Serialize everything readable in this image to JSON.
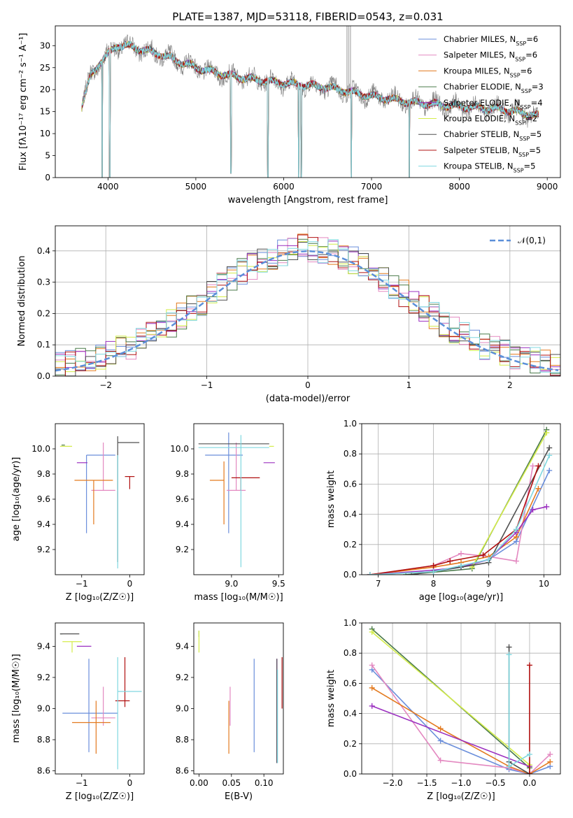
{
  "figure": {
    "title": "PLATE=1387, MJD=53118, FIBERID=0543, z=0.031"
  },
  "chart_data": [
    {
      "id": "spectrum",
      "type": "line",
      "xlabel": "wavelength [Angstrom, rest frame]",
      "ylabel": "Flux [fλ10⁻¹⁷ erg cm⁻² s⁻¹ A⁻¹]",
      "xlim": [
        3400,
        9150
      ],
      "ylim": [
        0,
        34.5
      ],
      "xticks": [
        4000,
        5000,
        6000,
        7000,
        8000,
        9000
      ],
      "yticks": [
        0,
        5,
        10,
        15,
        20,
        25,
        30
      ],
      "grid": false,
      "legend_position": "top-right",
      "data_color": "#808080",
      "series": [
        {
          "name": "Chabrier MILES, N_SSP=6",
          "color": "#6a8edb"
        },
        {
          "name": "Salpeter MILES, N_SSP=6",
          "color": "#e388c0"
        },
        {
          "name": "Kroupa MILES, N_SSP=6",
          "color": "#e37a1f"
        },
        {
          "name": "Chabrier ELODIE, N_SSP=3",
          "color": "#4a7a4a"
        },
        {
          "name": "Salpeter ELODIE, N_SSP=4",
          "color": "#9b30c0"
        },
        {
          "name": "Kroupa ELODIE, N_SSP=2",
          "color": "#d4ec4a"
        },
        {
          "name": "Chabrier STELIB, N_SSP=5",
          "color": "#505050"
        },
        {
          "name": "Salpeter STELIB, N_SSP=5",
          "color": "#b01010"
        },
        {
          "name": "Kroupa STELIB, N_SSP=5",
          "color": "#80d8e0"
        }
      ],
      "continuum": {
        "x": [
          3700,
          3800,
          3900,
          4000,
          4100,
          4200,
          4400,
          4600,
          4800,
          5000,
          5300,
          5600,
          6000,
          6500,
          7000,
          7500,
          8000,
          8500,
          8900
        ],
        "y": [
          16,
          23,
          26,
          28,
          30,
          30,
          29,
          28,
          26.5,
          25,
          23.5,
          22.5,
          21.5,
          20.5,
          18.5,
          17,
          16.2,
          15.5,
          14
        ]
      },
      "data_spikes": [
        {
          "x": 6720,
          "y_top": 34.5
        },
        {
          "x": 6740,
          "y_top": 34.5
        },
        {
          "x": 6760,
          "y_top": 34.5
        }
      ],
      "absorption_dips": [
        {
          "x": 3933,
          "y_min": 0
        },
        {
          "x": 4020,
          "y_min": 0
        },
        {
          "x": 5820,
          "y_min": 0
        },
        {
          "x": 6770,
          "y_min": 0
        },
        {
          "x": 7430,
          "y_min": 0
        },
        {
          "x": 5400,
          "y_min": 1
        },
        {
          "x": 6170,
          "y_min": 0
        },
        {
          "x": 6200,
          "y_min": 0
        }
      ]
    },
    {
      "id": "residual-hist",
      "type": "step",
      "xlabel": "(data-model)/error",
      "ylabel": "Normed distribution",
      "xlim": [
        -2.5,
        2.5
      ],
      "ylim": [
        0,
        0.48
      ],
      "xticks": [
        -2,
        -1,
        0,
        1,
        2
      ],
      "yticks": [
        0.0,
        0.1,
        0.2,
        0.3,
        0.4
      ],
      "grid": true,
      "legend_position": "top-right",
      "legend_label": "𝒩(0,1)",
      "normal_color": "#5b8fd9",
      "bin_width": 0.1
    },
    {
      "id": "age-vs-Z",
      "type": "errorbar",
      "xlabel": "Z [log₁₀(Z/Z☉)]",
      "ylabel": "age  [log₁₀(age/yr)]",
      "xlim": [
        -1.55,
        0.3
      ],
      "ylim": [
        9.0,
        10.2
      ],
      "xticks": [
        -1,
        0
      ],
      "yticks": [
        9.2,
        9.4,
        9.6,
        9.8,
        10.0
      ],
      "grid": false,
      "points": [
        {
          "color": "#6a8edb",
          "x": -0.9,
          "xerr": [
            0.0,
            0.6
          ],
          "y": 9.95,
          "yerr": [
            0.62,
            0.0
          ]
        },
        {
          "color": "#e388c0",
          "x": -0.55,
          "xerr": [
            0.25,
            0.25
          ],
          "y": 9.67,
          "yerr": [
            0.0,
            0.38
          ]
        },
        {
          "color": "#e37a1f",
          "x": -0.75,
          "xerr": [
            0.4,
            0.4
          ],
          "y": 9.75,
          "yerr": [
            0.35,
            0.0
          ]
        },
        {
          "color": "#4a7a4a",
          "x": -1.35,
          "xerr": [
            0.07,
            0.0
          ],
          "y": 10.03,
          "yerr": [
            0.0,
            0.0
          ]
        },
        {
          "color": "#9b30c0",
          "x": -1.0,
          "xerr": [
            0.1,
            0.12
          ],
          "y": 9.89,
          "yerr": [
            0.0,
            0.0
          ]
        },
        {
          "color": "#d4ec4a",
          "x": -1.2,
          "xerr": [
            0.25,
            0.0
          ],
          "y": 10.02,
          "yerr": [
            0.0,
            0.0
          ]
        },
        {
          "color": "#505050",
          "x": -0.25,
          "xerr": [
            0.0,
            0.45
          ],
          "y": 10.05,
          "yerr": [
            0.95,
            0.05
          ]
        },
        {
          "color": "#b01010",
          "x": 0.0,
          "xerr": [
            0.1,
            0.1
          ],
          "y": 9.78,
          "yerr": [
            0.1,
            0.0
          ]
        },
        {
          "color": "#80d8e0",
          "x": -0.25,
          "xerr": [
            0.0,
            0.0
          ],
          "y": 9.95,
          "yerr": [
            0.9,
            0.0
          ]
        }
      ]
    },
    {
      "id": "age-vs-mass",
      "type": "errorbar",
      "xlabel": "mass [log₁₀(M/M☉)]",
      "ylabel": "",
      "xlim": [
        8.6,
        9.55
      ],
      "ylim": [
        9.0,
        10.2
      ],
      "xticks": [
        9.0,
        9.5
      ],
      "yticks": [
        9.2,
        9.4,
        9.6,
        9.8,
        10.0
      ],
      "grid": false,
      "points": [
        {
          "color": "#6a8edb",
          "x": 8.97,
          "xerr": [
            0.25,
            0.15
          ],
          "y": 9.95,
          "yerr": [
            0.62,
            0.18
          ]
        },
        {
          "color": "#e388c0",
          "x": 9.05,
          "xerr": [
            0.1,
            0.1
          ],
          "y": 9.67,
          "yerr": [
            0.0,
            0.38
          ]
        },
        {
          "color": "#e37a1f",
          "x": 8.92,
          "xerr": [
            0.15,
            0.0
          ],
          "y": 9.75,
          "yerr": [
            0.35,
            0.15
          ]
        },
        {
          "color": "#4a7a4a",
          "x": 9.49,
          "xerr": [
            0.0,
            0.0
          ],
          "y": 10.0,
          "yerr": [
            0.0,
            0.0
          ]
        },
        {
          "color": "#9b30c0",
          "x": 9.4,
          "xerr": [
            0.06,
            0.06
          ],
          "y": 9.89,
          "yerr": [
            0.0,
            0.0
          ]
        },
        {
          "color": "#d4ec4a",
          "x": 9.45,
          "xerr": [
            0.05,
            0.0
          ],
          "y": 10.02,
          "yerr": [
            0.0,
            0.0
          ]
        },
        {
          "color": "#505050",
          "x": 9.05,
          "xerr": [
            0.4,
            0.35
          ],
          "y": 10.04,
          "yerr": [
            0.0,
            0.0
          ]
        },
        {
          "color": "#b01010",
          "x": 9.1,
          "xerr": [
            0.1,
            0.2
          ],
          "y": 9.77,
          "yerr": [
            0.1,
            0.0
          ]
        },
        {
          "color": "#80d8e0",
          "x": 9.1,
          "xerr": [
            0.45,
            0.3
          ],
          "y": 10.01,
          "yerr": [
            0.95,
            0.1
          ]
        }
      ]
    },
    {
      "id": "massweight-vs-age",
      "type": "line",
      "xlabel": "age  [log₁₀(age/yr)]",
      "ylabel": "mass weight",
      "xlim": [
        6.7,
        10.3
      ],
      "ylim": [
        0.0,
        1.0
      ],
      "xticks": [
        7,
        8,
        9,
        10
      ],
      "yticks": [
        0.0,
        0.2,
        0.4,
        0.6,
        0.8,
        1.0
      ],
      "grid": true,
      "series": [
        {
          "color": "#6a8edb",
          "x": [
            6.85,
            8.0,
            8.5,
            9.0,
            9.5,
            10.1
          ],
          "y": [
            0.0,
            0.02,
            0.05,
            0.1,
            0.22,
            0.69
          ]
        },
        {
          "color": "#e388c0",
          "x": [
            6.85,
            8.0,
            8.5,
            9.0,
            9.5,
            9.8
          ],
          "y": [
            0.0,
            0.06,
            0.14,
            0.12,
            0.09,
            0.72
          ]
        },
        {
          "color": "#e37a1f",
          "x": [
            6.85,
            8.0,
            8.5,
            9.0,
            9.5,
            9.9
          ],
          "y": [
            0.0,
            0.05,
            0.08,
            0.12,
            0.25,
            0.57
          ]
        },
        {
          "color": "#4a7a4a",
          "x": [
            7.5,
            8.7,
            10.05
          ],
          "y": [
            0.0,
            0.04,
            0.96
          ]
        },
        {
          "color": "#9b30c0",
          "x": [
            6.85,
            8.0,
            8.5,
            9.0,
            9.5,
            9.8,
            10.05
          ],
          "y": [
            0.0,
            0.03,
            0.05,
            0.1,
            0.28,
            0.43,
            0.45
          ]
        },
        {
          "color": "#d4ec4a",
          "x": [
            8.7,
            10.05
          ],
          "y": [
            0.05,
            0.94
          ]
        },
        {
          "color": "#505050",
          "x": [
            7.6,
            8.5,
            9.0,
            10.1
          ],
          "y": [
            0.0,
            0.05,
            0.08,
            0.84
          ]
        },
        {
          "color": "#b01010",
          "x": [
            6.85,
            8.0,
            8.3,
            8.9,
            9.5,
            9.9
          ],
          "y": [
            0.0,
            0.06,
            0.09,
            0.13,
            0.3,
            0.72
          ]
        },
        {
          "color": "#80d8e0",
          "x": [
            6.85,
            8.0,
            8.5,
            9.0,
            9.5,
            10.1
          ],
          "y": [
            0.0,
            0.02,
            0.06,
            0.1,
            0.3,
            0.79
          ]
        }
      ]
    },
    {
      "id": "mass-vs-Z",
      "type": "errorbar",
      "xlabel": "Z [log₁₀(Z/Z☉)]",
      "ylabel": "mass [log₁₀(M/M☉)]",
      "xlim": [
        -1.55,
        0.3
      ],
      "ylim": [
        8.58,
        9.55
      ],
      "xticks": [
        -1,
        0
      ],
      "yticks": [
        8.6,
        8.8,
        9.0,
        9.2,
        9.4
      ],
      "grid": false,
      "points": [
        {
          "color": "#6a8edb",
          "x": -0.85,
          "xerr": [
            0.55,
            0.6
          ],
          "y": 8.97,
          "yerr": [
            0.25,
            0.35
          ]
        },
        {
          "color": "#e388c0",
          "x": -0.55,
          "xerr": [
            0.25,
            0.25
          ],
          "y": 8.94,
          "yerr": [
            0.05,
            0.2
          ]
        },
        {
          "color": "#e37a1f",
          "x": -0.7,
          "xerr": [
            0.5,
            0.3
          ],
          "y": 8.91,
          "yerr": [
            0.2,
            0.14
          ]
        },
        {
          "color": "#4a7a4a",
          "x": -1.4,
          "xerr": [
            0.05,
            0.0
          ],
          "y": 9.48,
          "yerr": [
            0.0,
            0.0
          ]
        },
        {
          "color": "#9b30c0",
          "x": -1.0,
          "xerr": [
            0.1,
            0.2
          ],
          "y": 9.4,
          "yerr": [
            0.0,
            0.0
          ]
        },
        {
          "color": "#d4ec4a",
          "x": -1.2,
          "xerr": [
            0.2,
            0.2
          ],
          "y": 9.43,
          "yerr": [
            0.07,
            0.0
          ]
        },
        {
          "color": "#505050",
          "x": -1.25,
          "xerr": [
            0.2,
            0.2
          ],
          "y": 9.48,
          "yerr": [
            0.0,
            0.0
          ]
        },
        {
          "color": "#b01010",
          "x": -0.1,
          "xerr": [
            0.2,
            0.1
          ],
          "y": 9.05,
          "yerr": [
            0.04,
            0.28
          ]
        },
        {
          "color": "#80d8e0",
          "x": -0.25,
          "xerr": [
            0.0,
            0.5
          ],
          "y": 9.11,
          "yerr": [
            0.5,
            0.22
          ]
        }
      ]
    },
    {
      "id": "mass-vs-EBV",
      "type": "errorbar",
      "xlabel": "E(B-V)",
      "ylabel": "",
      "xlim": [
        -0.008,
        0.13
      ],
      "ylim": [
        8.58,
        9.55
      ],
      "xticks": [
        0.0,
        0.05,
        0.1
      ],
      "xticklabels": [
        "0.00",
        "0.05",
        "0.10"
      ],
      "yticks": [
        8.6,
        8.8,
        9.0,
        9.2,
        9.4
      ],
      "grid": false,
      "points": [
        {
          "color": "#6a8edb",
          "x": 0.085,
          "xerr": [
            0,
            0
          ],
          "y": 8.97,
          "yerr": [
            0.25,
            0.35
          ]
        },
        {
          "color": "#e388c0",
          "x": 0.048,
          "xerr": [
            0,
            0
          ],
          "y": 8.94,
          "yerr": [
            0.05,
            0.2
          ]
        },
        {
          "color": "#e37a1f",
          "x": 0.046,
          "xerr": [
            0,
            0
          ],
          "y": 8.91,
          "yerr": [
            0.2,
            0.14
          ]
        },
        {
          "color": "#4a7a4a",
          "x": 0.0,
          "xerr": [
            0,
            0
          ],
          "y": 9.48,
          "yerr": [
            0.02,
            0.02
          ]
        },
        {
          "color": "#9b30c0",
          "x": 0.12,
          "xerr": [
            0,
            0
          ],
          "y": 8.95,
          "yerr": [
            0.3,
            0.37
          ]
        },
        {
          "color": "#d4ec4a",
          "x": 0.0,
          "xerr": [
            0,
            0
          ],
          "y": 9.43,
          "yerr": [
            0.07,
            0.07
          ]
        },
        {
          "color": "#505050",
          "x": 0.12,
          "xerr": [
            0,
            0
          ],
          "y": 8.95,
          "yerr": [
            0.3,
            0.37
          ]
        },
        {
          "color": "#b01010",
          "x": 0.128,
          "xerr": [
            0,
            0
          ],
          "y": 9.1,
          "yerr": [
            0.1,
            0.23
          ]
        },
        {
          "color": "#80d8e0",
          "x": 0.121,
          "xerr": [
            0,
            0
          ],
          "y": 8.95,
          "yerr": [
            0.3,
            0.3
          ]
        }
      ]
    },
    {
      "id": "massweight-vs-Z",
      "type": "line",
      "xlabel": "Z [log₁₀(Z/Z☉)]",
      "ylabel": "mass weight",
      "xlim": [
        -2.45,
        0.45
      ],
      "ylim": [
        0.0,
        1.0
      ],
      "xticks": [
        -2.0,
        -1.5,
        -1.0,
        -0.5,
        0.0
      ],
      "yticks": [
        0.0,
        0.2,
        0.4,
        0.6,
        0.8,
        1.0
      ],
      "grid": true,
      "series": [
        {
          "color": "#6a8edb",
          "x": [
            -2.3,
            -1.3,
            -0.3,
            0.0,
            0.3
          ],
          "y": [
            0.69,
            0.22,
            0.03,
            0.0,
            0.05
          ]
        },
        {
          "color": "#e388c0",
          "x": [
            -2.3,
            -1.3,
            -0.3,
            0.0,
            0.3
          ],
          "y": [
            0.72,
            0.09,
            0.04,
            0.0,
            0.13
          ]
        },
        {
          "color": "#e37a1f",
          "x": [
            -2.3,
            -1.3,
            -0.3,
            0.0,
            0.3
          ],
          "y": [
            0.57,
            0.3,
            0.05,
            0.0,
            0.08
          ]
        },
        {
          "color": "#4a7a4a",
          "x": [
            -2.3,
            0.0
          ],
          "y": [
            0.96,
            0.04
          ]
        },
        {
          "color": "#9b30c0",
          "x": [
            -2.3,
            0.0
          ],
          "y": [
            0.45,
            0.05
          ]
        },
        {
          "color": "#d4ec4a",
          "x": [
            -2.3,
            0.0
          ],
          "y": [
            0.94,
            0.06
          ]
        },
        {
          "color": "#505050",
          "x": [
            -0.3,
            -0.3,
            0.0
          ],
          "y": [
            0.84,
            0.08,
            0.0
          ]
        },
        {
          "color": "#b01010",
          "x": [
            0.0,
            0.0
          ],
          "y": [
            0.72,
            0.0
          ]
        },
        {
          "color": "#80d8e0",
          "x": [
            -0.3,
            -0.3,
            0.0
          ],
          "y": [
            0.79,
            0.05,
            0.13
          ]
        }
      ]
    }
  ]
}
